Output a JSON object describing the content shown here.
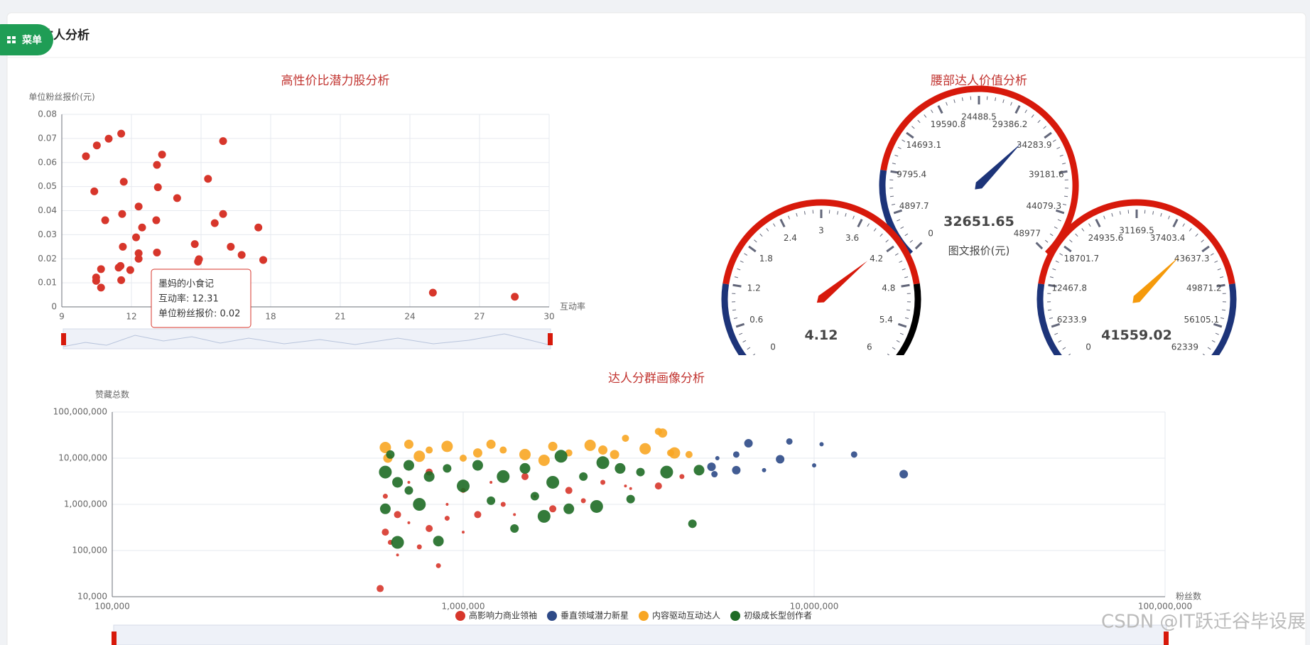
{
  "page": {
    "title": "达人分析",
    "menu": "菜单",
    "watermark": "CSDN @IT跃迁谷毕设展"
  },
  "chart_data": [
    {
      "type": "scatter",
      "title": "高性价比潜力股分析",
      "x_axis_label": "互动率",
      "y_axis_label": "单位粉丝报价(元)",
      "color": "#d7362b",
      "grid": true,
      "xlim": [
        9,
        30
      ],
      "xticks": [
        9,
        12,
        15,
        18,
        21,
        24,
        27,
        30
      ],
      "ylim": [
        0,
        0.08
      ],
      "yticks": [
        0,
        0.01,
        0.02,
        0.03,
        0.04,
        0.05,
        0.06,
        0.07,
        0.08
      ],
      "x": [
        10.04,
        10.51,
        11.02,
        11.56,
        10.4,
        10.87,
        11.67,
        11.6,
        13.32,
        13.1,
        13.14,
        12.31,
        12.46,
        13.07,
        12.2,
        11.63,
        12.31,
        13.1,
        13.97,
        15.3,
        15.95,
        15.95,
        15.59,
        14.73,
        14.91,
        14.87,
        16.28,
        16.75,
        17.47,
        17.68,
        10.69,
        10.48,
        10.48,
        10.69,
        11.45,
        11.53,
        11.56,
        11.95,
        24.99,
        28.52,
        12.31
      ],
      "y": [
        0.0626,
        0.0671,
        0.0699,
        0.072,
        0.048,
        0.036,
        0.052,
        0.0386,
        0.0633,
        0.059,
        0.0497,
        0.0417,
        0.033,
        0.036,
        0.0289,
        0.025,
        0.0223,
        0.0226,
        0.0452,
        0.0532,
        0.0689,
        0.0386,
        0.0348,
        0.0261,
        0.0198,
        0.0188,
        0.025,
        0.0216,
        0.033,
        0.0195,
        0.0157,
        0.0122,
        0.0108,
        0.008,
        0.0163,
        0.017,
        0.0111,
        0.0153,
        0.0059,
        0.0042,
        0.02
      ],
      "tooltip": {
        "name": "墨妈的小食记",
        "lines": [
          "互动率: 12.31",
          "单位粉丝报价: 0.02"
        ]
      }
    },
    {
      "type": "gauge",
      "title": "腰部达人价值分析",
      "gauges": [
        {
          "lim": [
            0,
            6
          ],
          "value": 4.12,
          "pointer_color": "#d7190b",
          "ticks": [
            0,
            0.6,
            1.2,
            1.8,
            2.4,
            3,
            3.6,
            4.2,
            4.8,
            5.4,
            6
          ],
          "axis_colors": [
            [
              0.2,
              "#1d3479"
            ],
            [
              0.8,
              "#d7190b"
            ],
            [
              1,
              "#000000"
            ]
          ]
        },
        {
          "lim": [
            0,
            48977
          ],
          "value": 32651.65,
          "pointer_color": "#1d3479",
          "name": "图文报价(元)",
          "ticks": [
            0,
            4897.7,
            9795.4,
            14693.1,
            19590.8,
            24488.5,
            29386.2,
            34283.9,
            39181.6,
            44079.3,
            48977
          ],
          "axis_colors": [
            [
              0.2,
              "#1d3479"
            ],
            [
              1,
              "#d7190b"
            ]
          ]
        },
        {
          "lim": [
            0,
            62339
          ],
          "value": 41559.02,
          "pointer_color": "#f59a0b",
          "ticks": [
            0,
            6233.9,
            12467.8,
            18701.7,
            24935.6,
            31169.5,
            37403.4,
            43637.3,
            49871.2,
            56105.1,
            62339
          ],
          "axis_colors": [
            [
              0.2,
              "#1d3479"
            ],
            [
              0.8,
              "#d7190b"
            ],
            [
              1,
              "#1d3479"
            ]
          ]
        }
      ]
    },
    {
      "type": "bubble",
      "title": "达人分群画像分析",
      "x_axis_label": "粉丝数",
      "y_axis_label": "赞藏总数",
      "log_x": true,
      "log_y": true,
      "grid": true,
      "legend": "bottom",
      "xlim": [
        100000,
        100000000
      ],
      "xticks": [
        {
          "value": 100000,
          "label": "100,000"
        },
        {
          "value": 1000000,
          "label": "1,000,000"
        },
        {
          "value": 10000000,
          "label": "10,000,000"
        },
        {
          "value": 100000000,
          "label": "100,000,000"
        }
      ],
      "ylim": [
        10000,
        100000000
      ],
      "yticks": [
        {
          "value": 10000,
          "label": "10,000"
        },
        {
          "value": 100000,
          "label": "100,000"
        },
        {
          "value": 1000000,
          "label": "1,000,000"
        },
        {
          "value": 10000000,
          "label": "10,000,000"
        },
        {
          "value": 100000000,
          "label": "100,000,000"
        }
      ],
      "series": [
        {
          "name": "高影响力商业领袖",
          "color": "#d7362b",
          "x": [
            600000,
            620000,
            650000,
            580000,
            850000,
            700000,
            800000,
            900000,
            1000000,
            1100000,
            1300000,
            1600000,
            2000000,
            2500000,
            3000000,
            3600000,
            4200000,
            700000,
            800000,
            1000000,
            1200000,
            1500000,
            600000,
            900000,
            1800000,
            2200000,
            2900000,
            650000,
            750000,
            1400000
          ],
          "values": [
            250000,
            150000,
            80000,
            15000,
            47000,
            400000,
            300000,
            500000,
            250000,
            600000,
            1000000,
            1500000,
            2000000,
            3000000,
            2200000,
            2500000,
            4000000,
            3000000,
            5000000,
            2000000,
            3000000,
            4000000,
            1500000,
            1000000,
            800000,
            1200000,
            2500000,
            600000,
            120000,
            600000
          ]
        },
        {
          "name": "垂直领域潜力新星",
          "color": "#2e4a87",
          "x": [
            6500000,
            8500000,
            10500000,
            18000000,
            13000000,
            10000000,
            8000000,
            6000000,
            7200000,
            6000000,
            5200000,
            5300000,
            5100000
          ],
          "values": [
            21000000,
            23000000,
            20000000,
            4500000,
            12000000,
            7000000,
            9500000,
            12000000,
            5500000,
            5500000,
            4500000,
            10000000,
            6500000
          ]
        },
        {
          "name": "内容驱动互动达人",
          "color": "#f8a623",
          "x": [
            600000,
            700000,
            800000,
            900000,
            1100000,
            1300000,
            1500000,
            1800000,
            2000000,
            2300000,
            2500000,
            2900000,
            3300000,
            3700000,
            3600000,
            4000000,
            610000,
            1000000,
            1700000,
            2700000,
            3900000,
            750000,
            1200000,
            4400000
          ],
          "values": [
            17000000,
            20000000,
            15000000,
            18000000,
            13000000,
            15000000,
            12000000,
            18000000,
            13000000,
            19000000,
            15000000,
            27000000,
            16000000,
            35000000,
            38000000,
            13000000,
            10000000,
            10000000,
            9000000,
            12000000,
            13000000,
            11000000,
            20000000,
            12000000
          ]
        },
        {
          "name": "初级成长型创作者",
          "color": "#1e6b25",
          "x": [
            600000,
            650000,
            700000,
            750000,
            800000,
            900000,
            1000000,
            1100000,
            1200000,
            1300000,
            1500000,
            1600000,
            1800000,
            2000000,
            2200000,
            2500000,
            2800000,
            3200000,
            3800000,
            4700000,
            4500000,
            650000,
            850000,
            1400000,
            1700000,
            600000,
            620000,
            1900000,
            700000,
            3000000,
            2400000
          ],
          "values": [
            5000000,
            3000000,
            2000000,
            1000000,
            4000000,
            6000000,
            2500000,
            7000000,
            1200000,
            4000000,
            6000000,
            1500000,
            3000000,
            800000,
            4000000,
            8000000,
            6000000,
            5000000,
            5000000,
            5500000,
            380000,
            150000,
            160000,
            300000,
            550000,
            800000,
            12000000,
            11000000,
            7000000,
            1300000,
            900000
          ]
        }
      ]
    }
  ]
}
